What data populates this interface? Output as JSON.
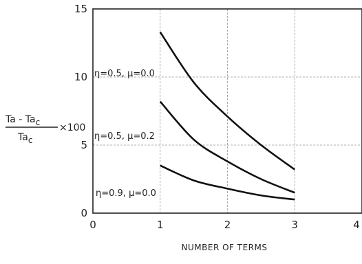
{
  "chart_data": {
    "type": "line",
    "xlabel": "NUMBER OF TERMS",
    "ylabel": {
      "numerator_base": "Ta",
      "numerator_sub": "",
      "numerator_minus": " - ",
      "numerator_base2": "Ta",
      "numerator_sub2": "c",
      "denominator_base": "Ta",
      "denominator_sub": "c",
      "multiplier": "×100"
    },
    "xlim": [
      0,
      4
    ],
    "ylim": [
      0,
      15
    ],
    "x_ticks": [
      "0",
      "1",
      "2",
      "3",
      "4"
    ],
    "y_ticks": [
      "0",
      "5",
      "10",
      "15"
    ],
    "grid": true,
    "series": [
      {
        "name": "η=0.5, μ=0.0",
        "x": [
          1,
          1.5,
          2,
          2.5,
          3
        ],
        "y": [
          13.3,
          9.6,
          7.1,
          5.0,
          3.2
        ]
      },
      {
        "name": "η=0.5, μ=0.2",
        "x": [
          1,
          1.5,
          2,
          2.5,
          3
        ],
        "y": [
          8.2,
          5.4,
          3.8,
          2.5,
          1.5
        ]
      },
      {
        "name": "η=0.9, μ=0.0",
        "x": [
          1,
          1.5,
          2,
          2.5,
          3
        ],
        "y": [
          3.5,
          2.4,
          1.8,
          1.3,
          1.0
        ]
      }
    ]
  }
}
